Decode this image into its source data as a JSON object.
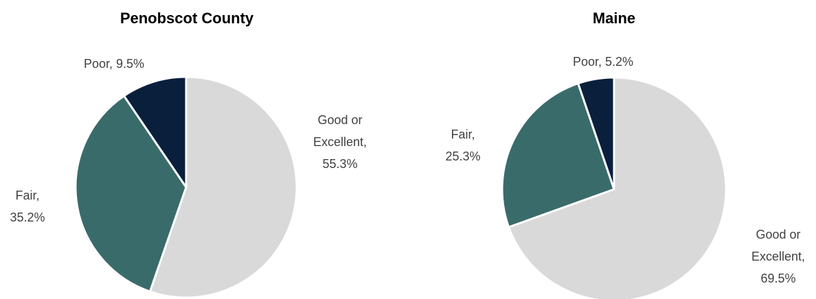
{
  "chart_data": [
    {
      "type": "pie",
      "title": "Penobscot County",
      "series": [
        {
          "name": "Good or Excellent",
          "value": 55.3,
          "label": [
            "Good or",
            "Excellent,",
            "55.3%"
          ],
          "color": "#d9d9d9"
        },
        {
          "name": "Fair",
          "value": 35.2,
          "label": [
            "Fair,",
            "35.2%"
          ],
          "color": "#3a6b6b"
        },
        {
          "name": "Poor",
          "value": 9.5,
          "label": [
            "Poor, 9.5%"
          ],
          "color": "#0a1f3c"
        }
      ]
    },
    {
      "type": "pie",
      "title": "Maine",
      "series": [
        {
          "name": "Good or Excellent",
          "value": 69.5,
          "label": [
            "Good or",
            "Excellent,",
            "69.5%"
          ],
          "color": "#d9d9d9"
        },
        {
          "name": "Fair",
          "value": 25.3,
          "label": [
            "Fair,",
            "25.3%"
          ],
          "color": "#3a6b6b"
        },
        {
          "name": "Poor",
          "value": 5.2,
          "label": [
            "Poor, 5.2%"
          ],
          "color": "#0a1f3c"
        }
      ]
    }
  ]
}
